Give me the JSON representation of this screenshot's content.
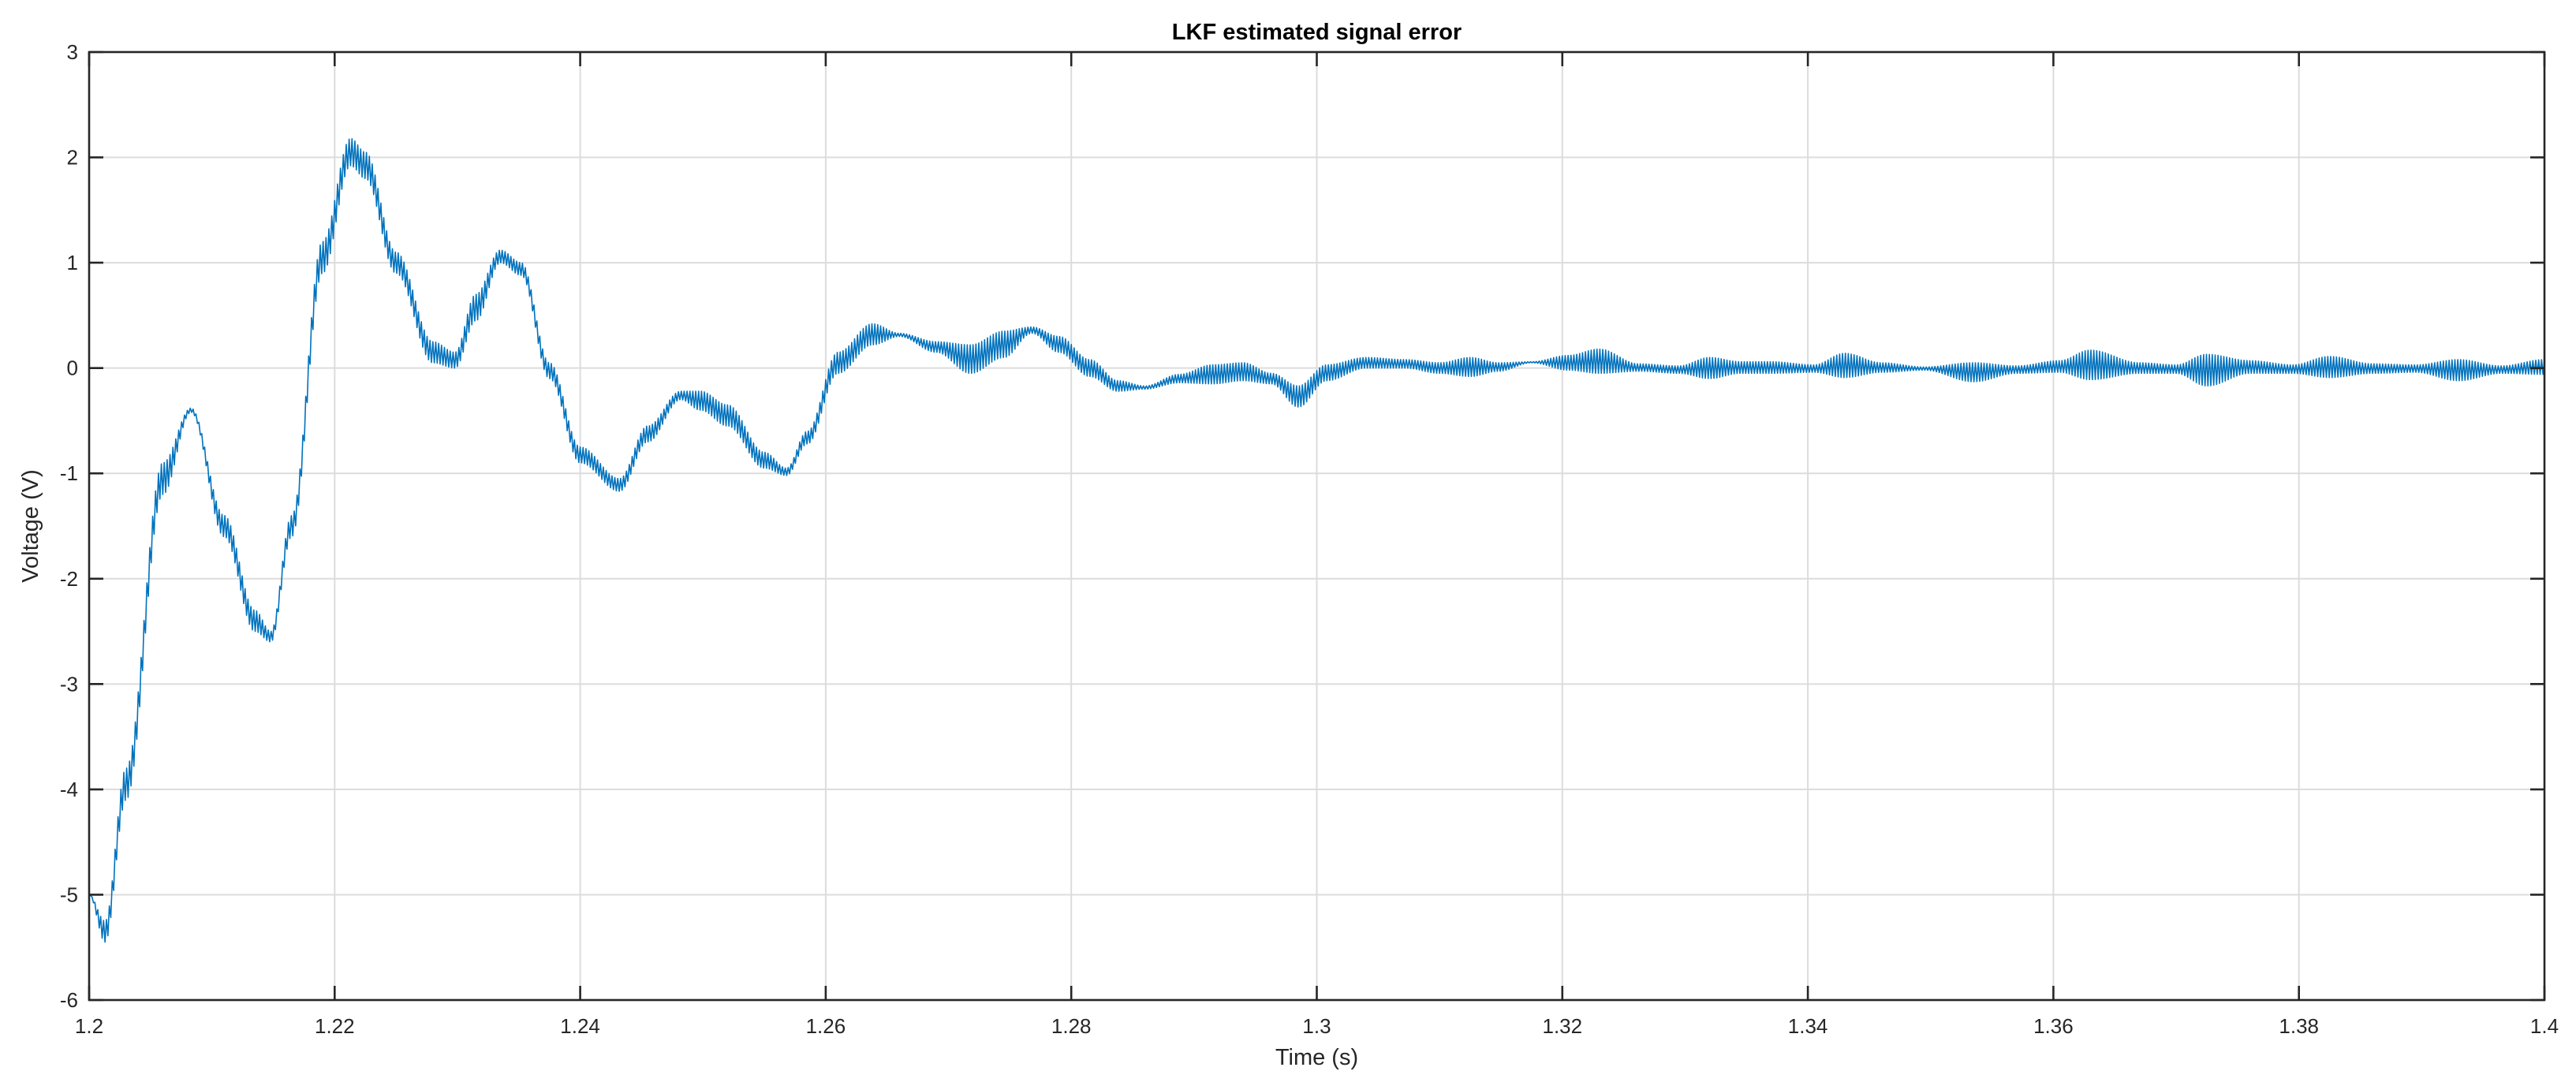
{
  "chart_data": {
    "type": "line",
    "title": "LKF estimated signal error",
    "xlabel": "Time (s)",
    "ylabel": "Voltage (V)",
    "xlim": [
      1.2,
      1.4
    ],
    "ylim": [
      -6,
      3
    ],
    "grid": true,
    "x_ticks": [
      1.2,
      1.22,
      1.24,
      1.26,
      1.28,
      1.3,
      1.32,
      1.34,
      1.36,
      1.38,
      1.4
    ],
    "x_tick_labels": [
      "1.2",
      "1.22",
      "1.24",
      "1.26",
      "1.28",
      "1.3",
      "1.32",
      "1.34",
      "1.36",
      "1.38",
      "1.4"
    ],
    "y_ticks": [
      3,
      2,
      1,
      0,
      -1,
      -2,
      -3,
      -4,
      -5,
      -6
    ],
    "y_tick_labels": [
      "3",
      "2",
      "1",
      "0",
      "-1",
      "-2",
      "-3",
      "-4",
      "-5",
      "-6"
    ],
    "series": [
      {
        "color": "#0072BD",
        "envelope": {
          "x": [
            1.2,
            1.2013,
            1.203,
            1.206,
            1.2083,
            1.211,
            1.2135,
            1.2148,
            1.2165,
            1.219,
            1.2213,
            1.2225,
            1.225,
            1.228,
            1.2298,
            1.2315,
            1.2335,
            1.2352,
            1.2375,
            1.24,
            1.2432,
            1.2455,
            1.2482,
            1.2498,
            1.252,
            1.255,
            1.2568,
            1.2585,
            1.261,
            1.2638,
            1.266,
            1.269,
            1.2718,
            1.2745,
            1.2768,
            1.279,
            1.2815,
            1.2838,
            1.286,
            1.2888,
            1.2915,
            1.294,
            1.2963,
            1.2985,
            1.3008,
            1.304,
            1.3072,
            1.31,
            1.3125,
            1.3148,
            1.3175,
            1.3205,
            1.323,
            1.3262,
            1.3295,
            1.332,
            1.3345,
            1.337,
            1.3405,
            1.343,
            1.346,
            1.3495,
            1.3535,
            1.357,
            1.3605,
            1.363,
            1.367,
            1.37,
            1.3725,
            1.376,
            1.3795,
            1.3825,
            1.386,
            1.3895,
            1.393,
            1.3965,
            1.4
          ],
          "upper": [
            -5.0,
            -5.25,
            -3.8,
            -0.9,
            -0.38,
            -1.4,
            -2.3,
            -2.5,
            -1.4,
            1.2,
            2.18,
            2.05,
            1.1,
            0.25,
            0.15,
            0.7,
            1.12,
            1.0,
            0.05,
            -0.75,
            -1.05,
            -0.55,
            -0.22,
            -0.22,
            -0.35,
            -0.8,
            -0.95,
            -0.6,
            0.15,
            0.42,
            0.33,
            0.25,
            0.22,
            0.35,
            0.39,
            0.3,
            0.08,
            -0.12,
            -0.17,
            -0.06,
            0.03,
            0.05,
            -0.05,
            -0.17,
            0.03,
            0.1,
            0.08,
            0.05,
            0.1,
            0.05,
            0.06,
            0.12,
            0.18,
            0.04,
            0.02,
            0.1,
            0.06,
            0.06,
            0.03,
            0.14,
            0.05,
            0.01,
            0.05,
            0.02,
            0.07,
            0.17,
            0.05,
            0.03,
            0.13,
            0.07,
            0.03,
            0.11,
            0.04,
            0.03,
            0.08,
            0.02,
            0.08
          ],
          "lower": [
            -5.0,
            -5.45,
            -4.1,
            -1.2,
            -0.42,
            -1.6,
            -2.5,
            -2.6,
            -1.6,
            0.9,
            1.92,
            1.8,
            0.9,
            0.05,
            0.0,
            0.45,
            1.0,
            0.88,
            -0.1,
            -0.9,
            -1.17,
            -0.7,
            -0.3,
            -0.4,
            -0.55,
            -0.95,
            -1.02,
            -0.72,
            -0.05,
            0.22,
            0.3,
            0.15,
            -0.05,
            0.1,
            0.33,
            0.15,
            -0.08,
            -0.22,
            -0.2,
            -0.14,
            -0.15,
            -0.12,
            -0.15,
            -0.37,
            -0.12,
            0.0,
            0.0,
            -0.05,
            -0.08,
            -0.03,
            0.05,
            -0.02,
            -0.05,
            -0.03,
            -0.05,
            -0.1,
            -0.05,
            -0.05,
            -0.04,
            -0.09,
            -0.04,
            -0.02,
            -0.13,
            -0.05,
            -0.04,
            -0.11,
            -0.05,
            -0.05,
            -0.17,
            -0.05,
            -0.05,
            -0.09,
            -0.05,
            -0.04,
            -0.12,
            -0.05,
            -0.06
          ]
        }
      }
    ]
  }
}
